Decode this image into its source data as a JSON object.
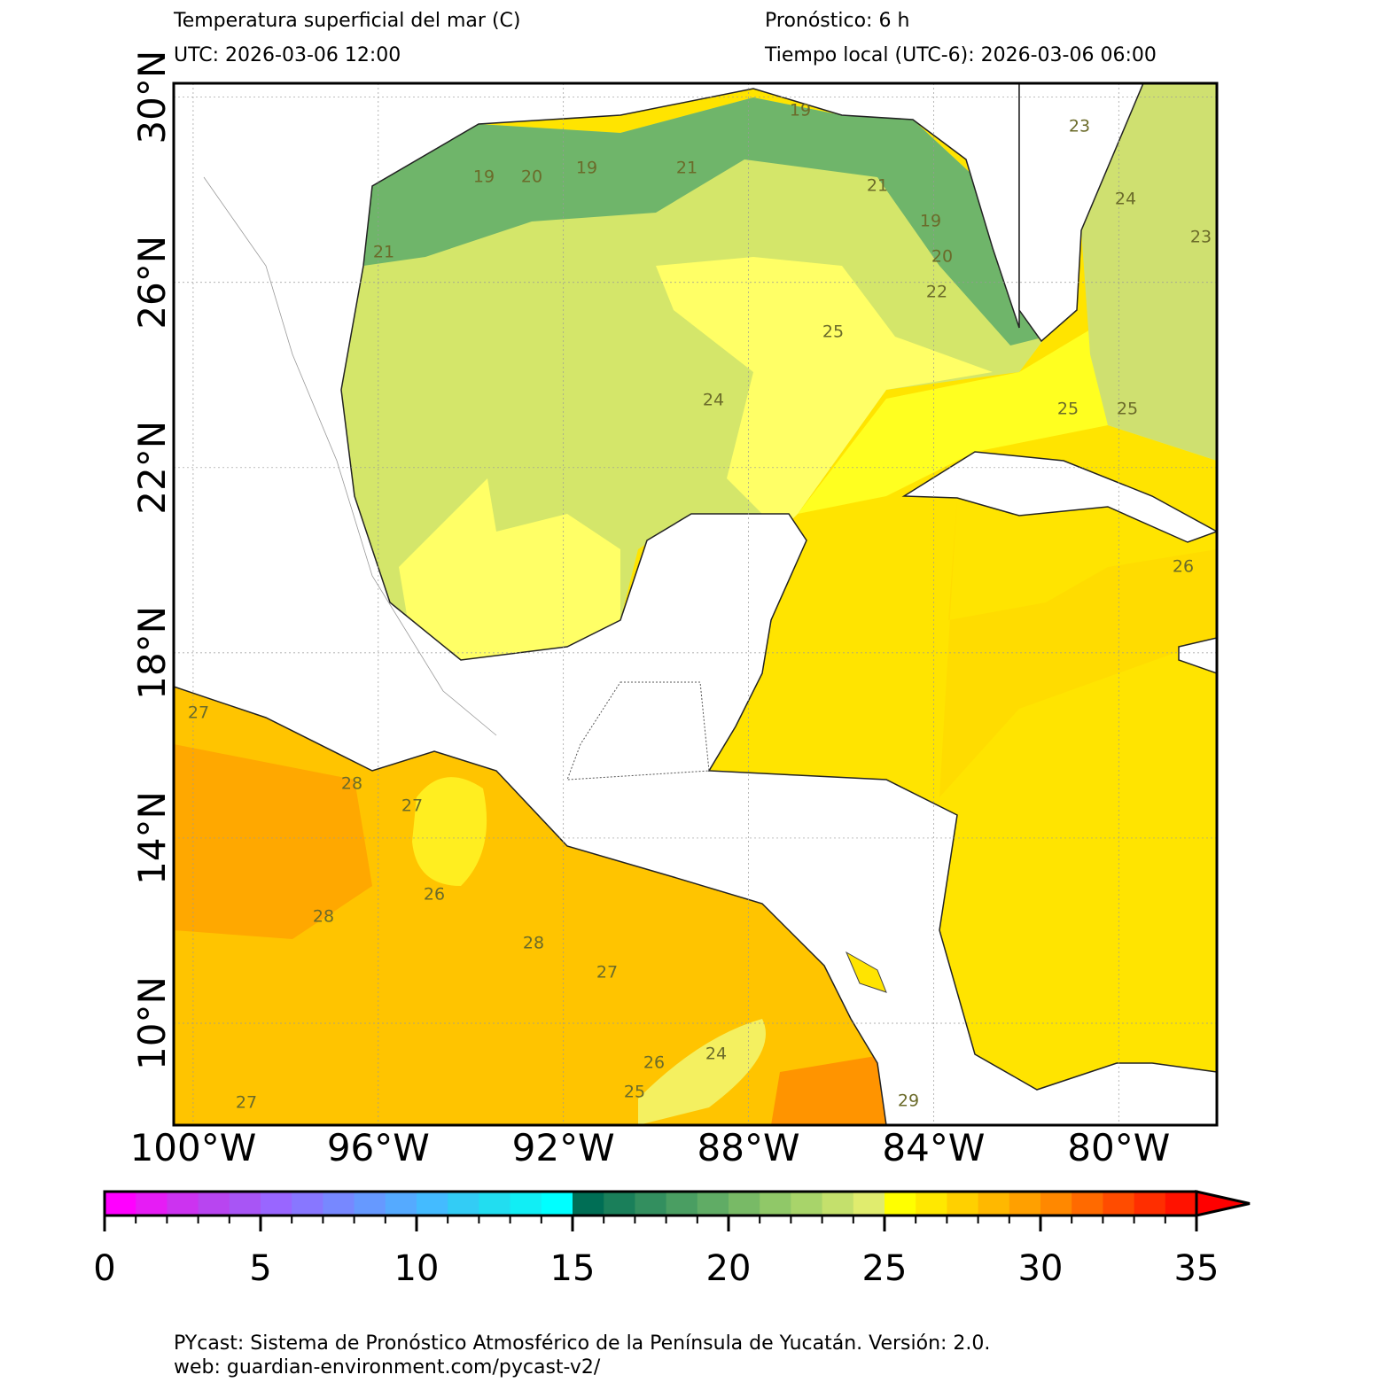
{
  "header": {
    "title": "Temperatura superficial del mar (C)",
    "forecast": "Pronóstico: 6 h",
    "utc": "UTC:  2026-03-06 12:00",
    "local": "Tiempo local (UTC-6): 2026-03-06 06:00"
  },
  "map": {
    "lonlim": [
      -100.42,
      -77.88
    ],
    "latlim": [
      7.8,
      30.3
    ],
    "lon_ticks": [
      {
        "value": -100,
        "label": "100°W"
      },
      {
        "value": -96,
        "label": "96°W"
      },
      {
        "value": -92,
        "label": "92°W"
      },
      {
        "value": -88,
        "label": "88°W"
      },
      {
        "value": -84,
        "label": "84°W"
      },
      {
        "value": -80,
        "label": "80°W"
      }
    ],
    "lat_ticks": [
      {
        "value": 30,
        "label": "30°N"
      },
      {
        "value": 26,
        "label": "26°N"
      },
      {
        "value": 22,
        "label": "22°N"
      },
      {
        "value": 18,
        "label": "18°N"
      },
      {
        "value": 14,
        "label": "14°N"
      },
      {
        "value": 10,
        "label": "10°N"
      }
    ],
    "grid": true,
    "contour_labels": [
      19,
      20,
      19,
      21,
      19,
      21,
      19,
      20,
      22,
      21,
      25,
      24,
      25,
      25,
      23,
      24,
      23,
      27,
      28,
      27,
      26,
      28,
      28,
      27,
      24,
      26,
      25,
      29,
      27,
      26
    ]
  },
  "colorbar": {
    "lim": [
      0,
      35
    ],
    "ticks": [
      0,
      5,
      10,
      15,
      20,
      25,
      30,
      35
    ],
    "colors": [
      "#ff00ff",
      "#e61cf5",
      "#cc33f0",
      "#b845f0",
      "#a855f5",
      "#9966ff",
      "#8877ff",
      "#7788ff",
      "#6699ff",
      "#55aaff",
      "#44bbff",
      "#33ccf5",
      "#22ddf0",
      "#11eef5",
      "#00ffff",
      "#006e55",
      "#1a7f5a",
      "#338f5f",
      "#4a9e62",
      "#60ac65",
      "#78ba66",
      "#90c868",
      "#a8d46a",
      "#c4e06c",
      "#e0ec6e",
      "#ffff00",
      "#ffe800",
      "#ffd000",
      "#ffb800",
      "#ffa000",
      "#ff8800",
      "#ff6a00",
      "#ff4c00",
      "#ff2e00",
      "#ff1200"
    ],
    "extend_color": "#ff0000"
  },
  "footer": {
    "line1": "PYcast: Sistema de Pronóstico Atmosférico de la Península de Yucatán. Versión: 2.0.",
    "line2": "web: guardian-environment.com/pycast-v2/"
  }
}
